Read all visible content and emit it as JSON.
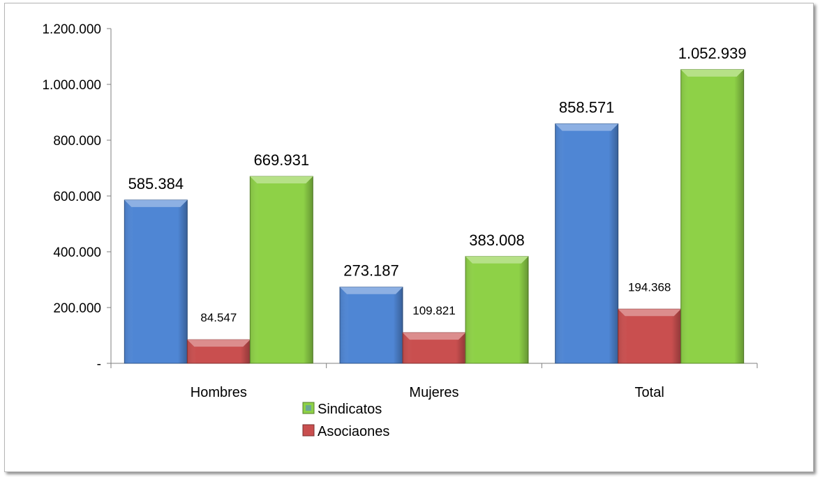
{
  "chart_data": {
    "type": "bar",
    "title": "",
    "xlabel": "",
    "ylabel": "",
    "categories": [
      "Hombres",
      "Mujeres",
      "Total"
    ],
    "ylim": [
      0,
      1200000
    ],
    "yticks": [
      0,
      200000,
      400000,
      600000,
      800000,
      1000000,
      1200000
    ],
    "ytick_labels": [
      "-",
      "200.000",
      "400.000",
      "600.000",
      "800.000",
      "1.000.000",
      "1.200.000"
    ],
    "series": [
      {
        "name": "",
        "color": "#4f86d4",
        "values": [
          585384,
          273187,
          858571
        ],
        "labels": [
          "585.384",
          "273.187",
          "858.571"
        ]
      },
      {
        "name": "Asociaones",
        "color": "#c94f4f",
        "values": [
          84547,
          109821,
          194368
        ],
        "labels": [
          "84.547",
          "109.821",
          "194.368"
        ]
      },
      {
        "name": "Sindicatos",
        "color": "#8ed147",
        "values": [
          669931,
          383008,
          1052939
        ],
        "labels": [
          "669.931",
          "383.008",
          "1.052.939"
        ]
      }
    ],
    "legend": {
      "placement": "bottom-center",
      "entries": [
        {
          "label": "Sindicatos",
          "swatch": "#8ed147"
        },
        {
          "label": "Asociaones",
          "swatch": "#c94f4f"
        }
      ]
    },
    "grid": false
  }
}
